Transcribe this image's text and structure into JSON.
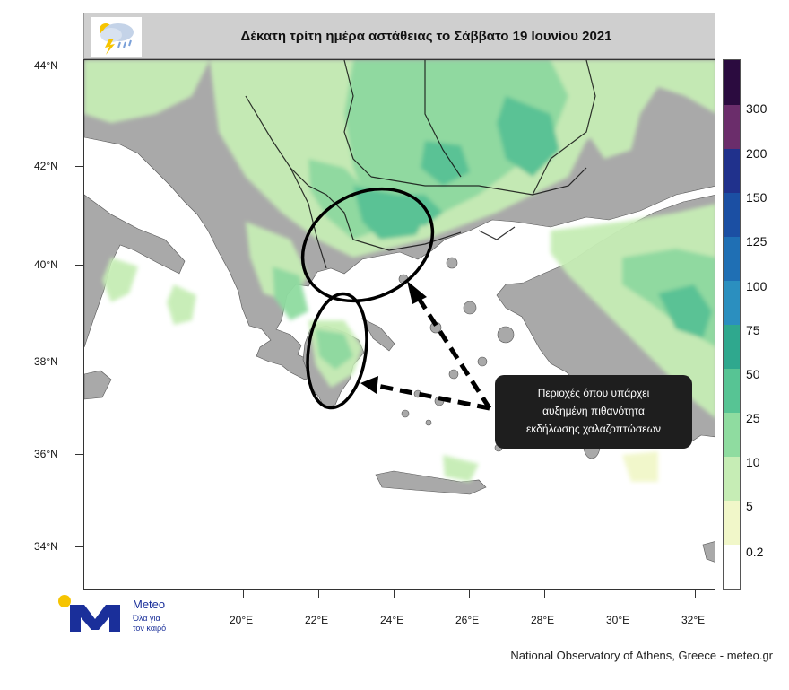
{
  "title": "Δέκατη τρίτη ημέρα αστάθειας το Σάββατο 19 Ιουνίου 2021",
  "latitude_labels": [
    "44°N",
    "42°N",
    "40°N",
    "38°N",
    "36°N",
    "34°N"
  ],
  "longitude_labels": [
    "20°E",
    "22°E",
    "24°E",
    "26°E",
    "28°E",
    "30°E",
    "32°E"
  ],
  "legend": {
    "levels": [
      "0.2",
      "5",
      "10",
      "25",
      "50",
      "75",
      "100",
      "125",
      "150",
      "200",
      "300"
    ],
    "colors": [
      "#ffffff",
      "#f1f7c9",
      "#c6edb5",
      "#8fdca0",
      "#57c494",
      "#2fa88e",
      "#2b8fbf",
      "#1f6fb4",
      "#1b4fa3",
      "#20318c",
      "#6b2d6b",
      "#2b0b3f"
    ]
  },
  "map_colors": {
    "sea": "#ffffff",
    "land": "#a9a9a9",
    "precip_light": "#c6edb5",
    "precip_medium": "#8fdca0",
    "precip_dark": "#57c494",
    "borders": "#111111"
  },
  "annotation": {
    "lines": [
      "Περιοχές όπου υπάρχει",
      "αυξημένη πιθανότητα",
      "εκδήλωσης χαλαζοπτώσεων"
    ]
  },
  "logo": {
    "name": "Meteo",
    "tagline_1": "Όλα για",
    "tagline_2": "τον καιρό"
  },
  "credit": "National Observatory of Athens, Greece - meteo.gr"
}
